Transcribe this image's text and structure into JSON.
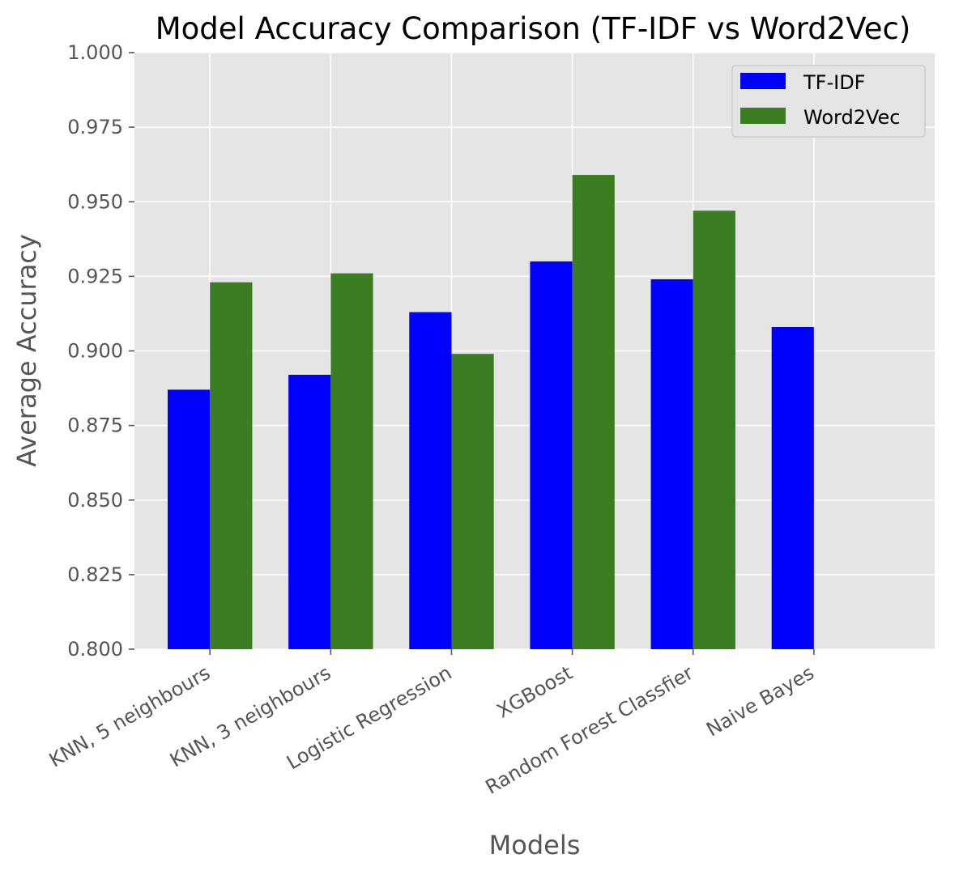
{
  "chart_data": {
    "type": "bar",
    "title": "Model Accuracy Comparison (TF-IDF vs Word2Vec)",
    "xlabel": "Models",
    "ylabel": "Average Accuracy",
    "ylim": [
      0.8,
      1.0
    ],
    "yticks": [
      "0.800",
      "0.825",
      "0.850",
      "0.875",
      "0.900",
      "0.925",
      "0.950",
      "0.975",
      "1.000"
    ],
    "categories": [
      "KNN, 5 neighbours",
      "KNN, 3 neighbours",
      "Logistic Regression",
      "XGBoost",
      "Random Forest Classfier",
      "Naive Bayes"
    ],
    "series": [
      {
        "name": "TF-IDF",
        "color": "#0000ff",
        "values": [
          0.887,
          0.892,
          0.913,
          0.93,
          0.924,
          0.908
        ]
      },
      {
        "name": "Word2Vec",
        "color": "#3a7d22",
        "values": [
          0.923,
          0.926,
          0.899,
          0.959,
          0.947,
          null
        ]
      }
    ],
    "grid": true,
    "legend_position": "top-right",
    "background": "#e5e5e5"
  }
}
